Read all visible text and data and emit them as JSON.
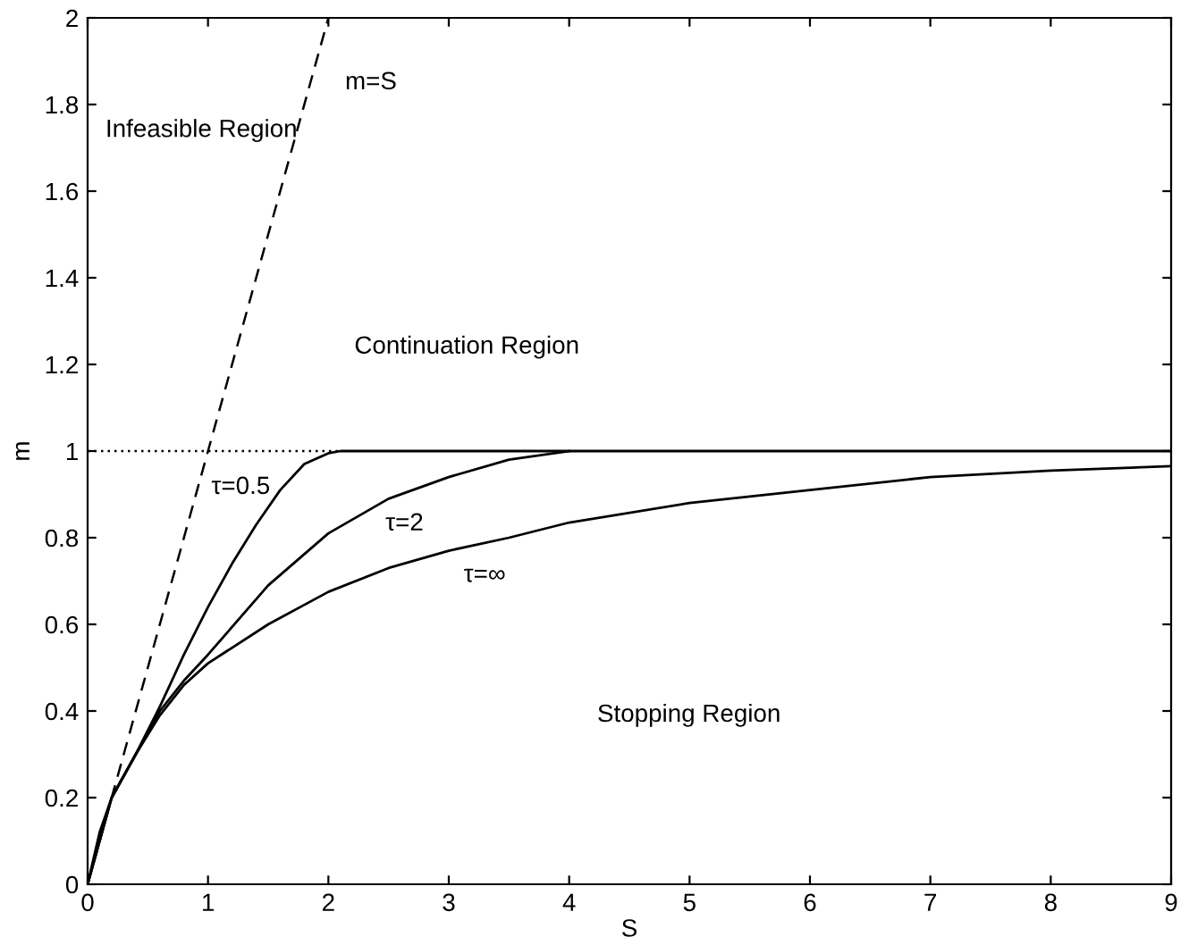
{
  "chart_data": {
    "type": "line",
    "xlabel": "S",
    "ylabel": "m",
    "xlim": [
      0,
      9
    ],
    "xticks": [
      0,
      1,
      2,
      3,
      4,
      5,
      6,
      7,
      8,
      9
    ],
    "ylim": [
      0,
      2
    ],
    "yticks": [
      0,
      0.2,
      0.4,
      0.6,
      0.8,
      1,
      1.2,
      1.4,
      1.6,
      1.8,
      2
    ],
    "grid": false,
    "marker": "none",
    "series": [
      {
        "name": "m=S",
        "color": "#000000",
        "line_style": "dashed",
        "x": [
          0,
          2
        ],
        "values": [
          0,
          2
        ]
      },
      {
        "color": "#000000",
        "line_style": "dotted",
        "x": [
          0,
          2.1
        ],
        "values": [
          1,
          1
        ]
      },
      {
        "name": "τ=0.5",
        "color": "#000000",
        "line_style": "solid",
        "x": [
          0,
          0.1,
          0.2,
          0.4,
          0.6,
          0.8,
          1,
          1.2,
          1.4,
          1.6,
          1.8,
          2.0,
          2.1,
          9
        ],
        "values": [
          0,
          0.12,
          0.2,
          0.3,
          0.41,
          0.53,
          0.64,
          0.74,
          0.83,
          0.91,
          0.97,
          0.995,
          1.0,
          1.0
        ]
      },
      {
        "name": "τ=2",
        "color": "#000000",
        "line_style": "solid",
        "x": [
          0,
          0.2,
          0.4,
          0.6,
          0.8,
          1,
          1.5,
          2,
          2.5,
          3,
          3.5,
          4
        ],
        "values": [
          0,
          0.2,
          0.3,
          0.4,
          0.47,
          0.53,
          0.69,
          0.81,
          0.89,
          0.94,
          0.98,
          1.0
        ]
      },
      {
        "name": "τ=∞",
        "color": "#000000",
        "line_style": "solid",
        "x": [
          0,
          0.2,
          0.4,
          0.6,
          0.8,
          1,
          1.5,
          2,
          2.5,
          3,
          3.5,
          4,
          5,
          6,
          7,
          8,
          9
        ],
        "values": [
          0,
          0.2,
          0.3,
          0.39,
          0.46,
          0.51,
          0.6,
          0.675,
          0.73,
          0.77,
          0.8,
          0.835,
          0.88,
          0.91,
          0.94,
          0.955,
          0.965
        ]
      }
    ],
    "annotations": [
      "Infeasible Region",
      "Continuation Region",
      "Stopping Region"
    ]
  }
}
